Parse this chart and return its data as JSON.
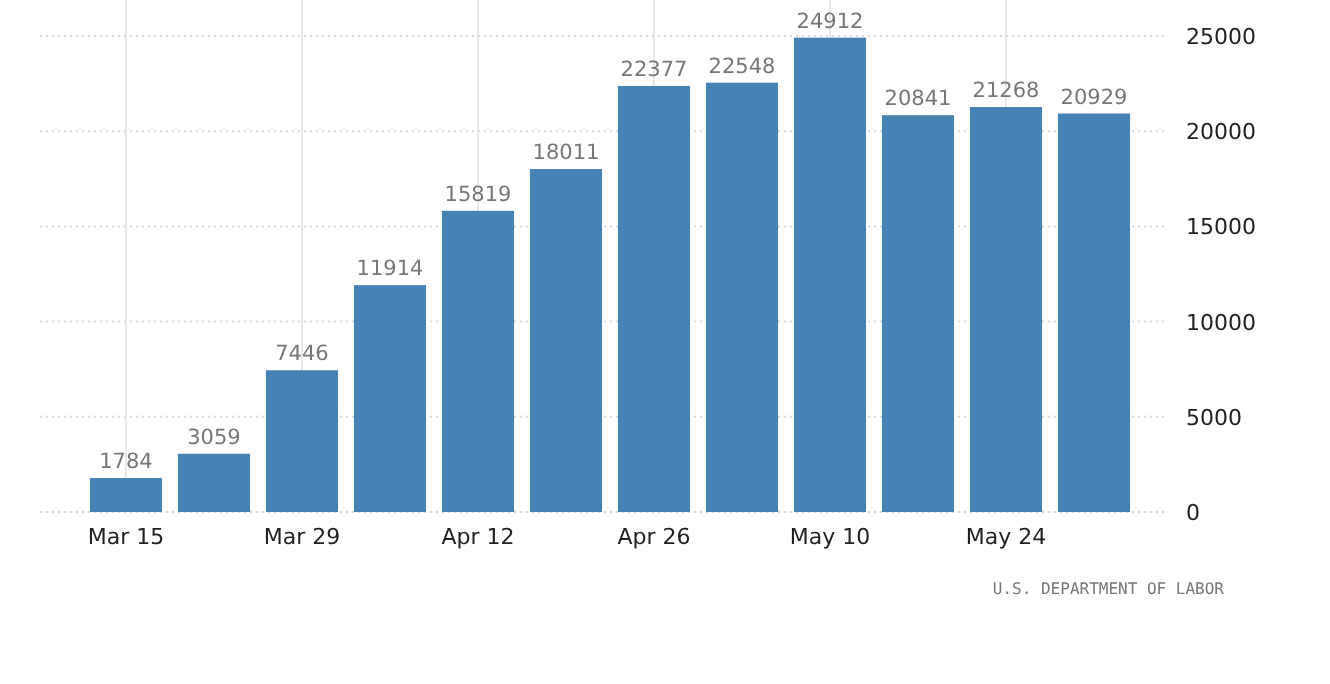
{
  "chart_data": {
    "type": "bar",
    "categories": [
      "Mar 15",
      null,
      "Mar 29",
      null,
      "Apr 12",
      null,
      "Apr 26",
      null,
      "May 10",
      null,
      "May 24",
      null
    ],
    "values": [
      1784,
      3059,
      7446,
      11914,
      15819,
      18011,
      22377,
      22548,
      24912,
      20841,
      21268,
      20929
    ],
    "color": "#4682b4",
    "ylim": [
      0,
      25000
    ],
    "yticks": [
      0,
      5000,
      10000,
      15000,
      20000,
      25000
    ],
    "grid": true,
    "data_labels": true,
    "annotations": [
      "U.S. DEPARTMENT OF LABOR"
    ]
  }
}
